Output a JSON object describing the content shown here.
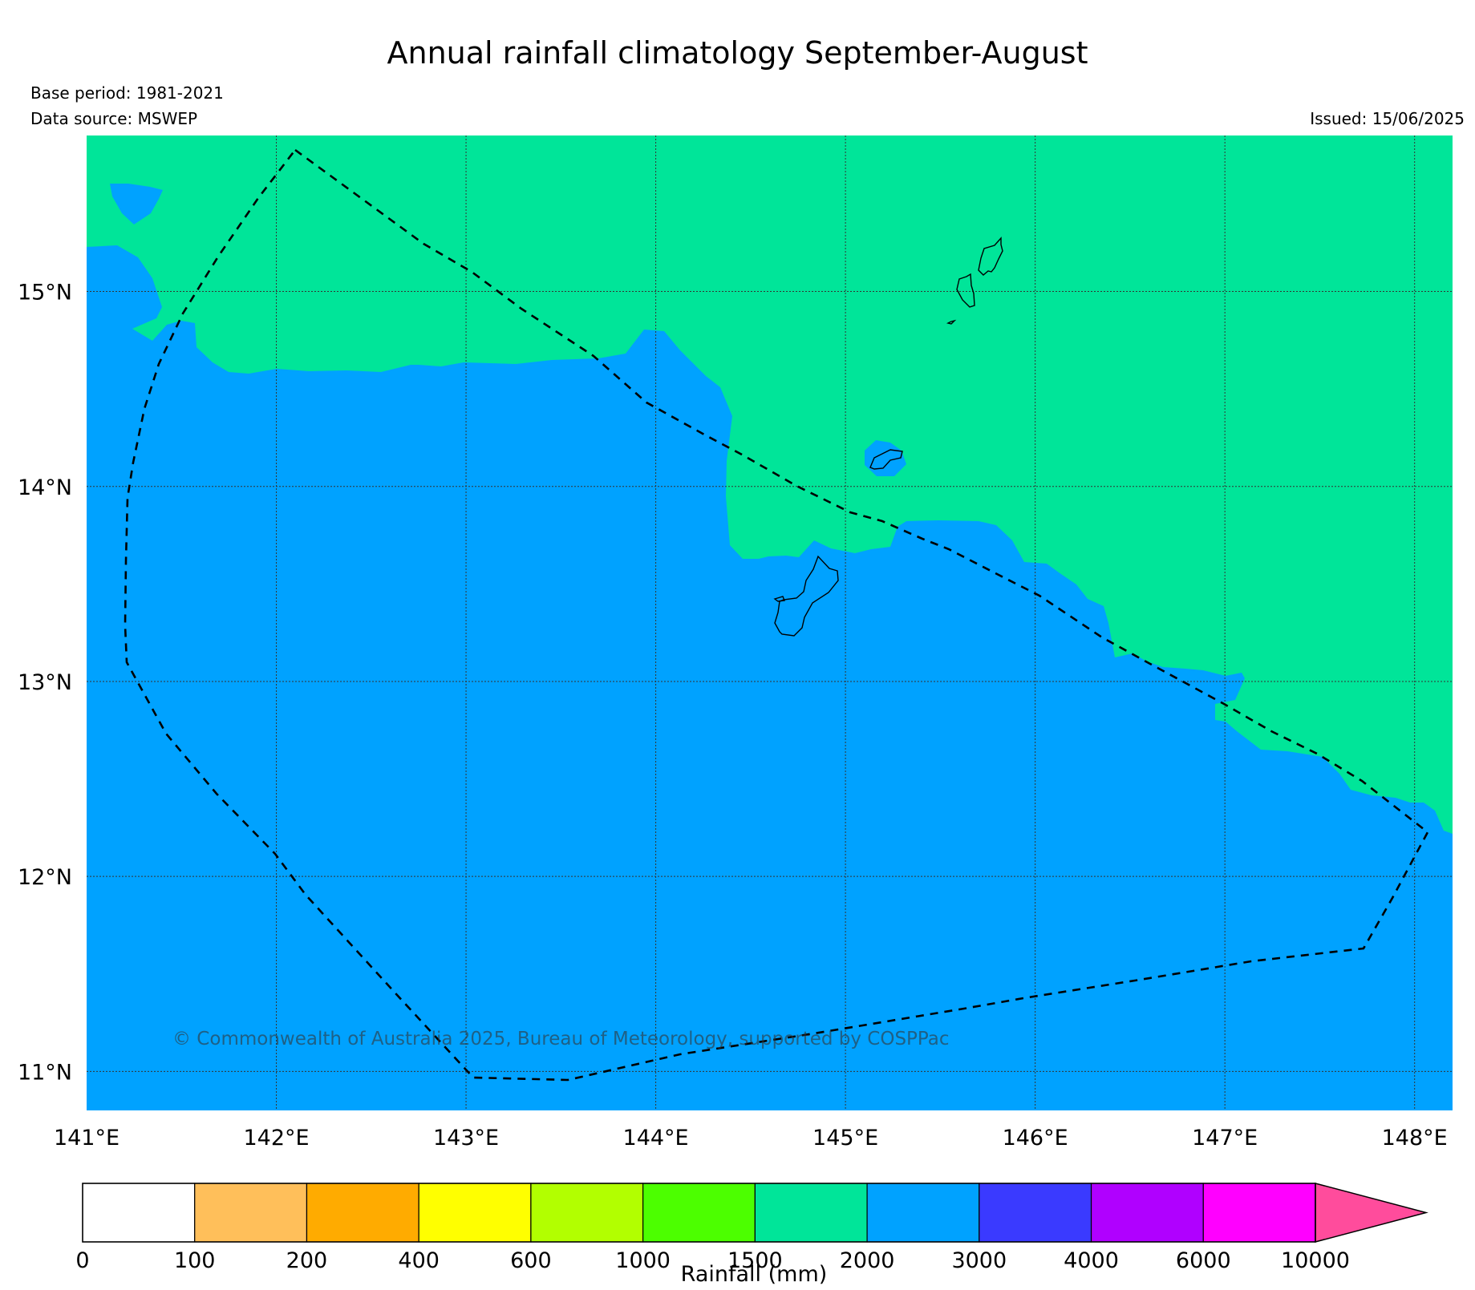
{
  "header": {
    "title": "Annual rainfall climatology September-August",
    "base_period": "Base period: 1981-2021",
    "data_source": "Data source: MSWEP",
    "issued": "Issued: 15/06/2025"
  },
  "map": {
    "lon_labels": [
      "141°E",
      "142°E",
      "143°E",
      "144°E",
      "145°E",
      "146°E",
      "147°E",
      "148°E"
    ],
    "lat_labels": [
      "15°N",
      "14°N",
      "13°N",
      "12°N",
      "11°N"
    ],
    "lon_range": [
      141,
      148.2
    ],
    "lat_range": [
      10.8,
      15.8
    ],
    "zones": {
      "lower_rainfall_zone_color": "#00a2ff",
      "higher_rainfall_zone_color": "#00e599"
    },
    "copyright": "© Commonwealth of Australia 2025, Bureau of Meteorology, supported by COSPPac"
  },
  "colorbar": {
    "label": "Rainfall (mm)",
    "ticks": [
      "0",
      "100",
      "200",
      "400",
      "600",
      "1000",
      "1500",
      "2000",
      "3000",
      "4000",
      "6000",
      "10000"
    ],
    "colors": [
      "#ffffff",
      "#ffbf5a",
      "#ffab00",
      "#ffff00",
      "#b2ff00",
      "#4cff00",
      "#00e599",
      "#00a2ff",
      "#3a3aff",
      "#b000ff",
      "#ff00ff"
    ],
    "extend_color": "#ff4c9c"
  }
}
